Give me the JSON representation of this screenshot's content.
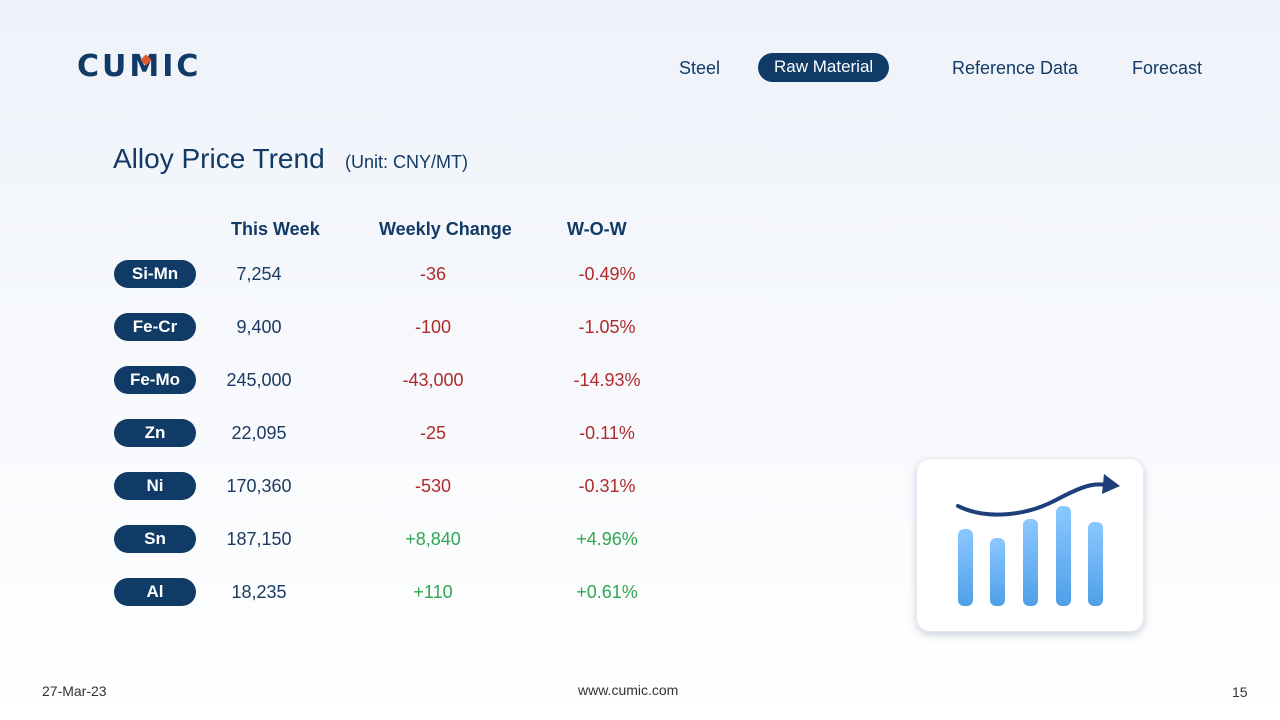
{
  "brand": {
    "logo_text": "CUMIC"
  },
  "nav": {
    "items": [
      {
        "label": "Steel",
        "active": false
      },
      {
        "label": "Raw Material",
        "active": true
      },
      {
        "label": "Reference Data",
        "active": false
      },
      {
        "label": "Forecast",
        "active": false
      }
    ]
  },
  "page": {
    "title": "Alloy Price Trend",
    "unit": "(Unit: CNY/MT)"
  },
  "table": {
    "headers": {
      "this_week": "This Week",
      "weekly_change": "Weekly Change",
      "wow": "W-O-W"
    },
    "rows": [
      {
        "name": "Si-Mn",
        "this_week": "7,254",
        "change": "-36",
        "wow": "-0.49%",
        "trend": "down"
      },
      {
        "name": "Fe-Cr",
        "this_week": "9,400",
        "change": "-100",
        "wow": "-1.05%",
        "trend": "down"
      },
      {
        "name": "Fe-Mo",
        "this_week": "245,000",
        "change": "-43,000",
        "wow": "-14.93%",
        "trend": "down"
      },
      {
        "name": "Zn",
        "this_week": "22,095",
        "change": "-25",
        "wow": "-0.11%",
        "trend": "down"
      },
      {
        "name": "Ni",
        "this_week": "170,360",
        "change": "-530",
        "wow": "-0.31%",
        "trend": "down"
      },
      {
        "name": "Sn",
        "this_week": "187,150",
        "change": "+8,840",
        "wow": "+4.96%",
        "trend": "up"
      },
      {
        "name": "Al",
        "this_week": "18,235",
        "change": "+110",
        "wow": "+0.61%",
        "trend": "up"
      }
    ]
  },
  "illustration": {
    "icon": "bar-chart-trend-up-icon"
  },
  "footer": {
    "date": "27-Mar-23",
    "website": "www.cumic.com",
    "page_number": "15"
  },
  "colors": {
    "navy": "#0f3b66",
    "negative": "#b02a2a",
    "positive": "#2fa64f",
    "accent": "#e05a2a"
  }
}
